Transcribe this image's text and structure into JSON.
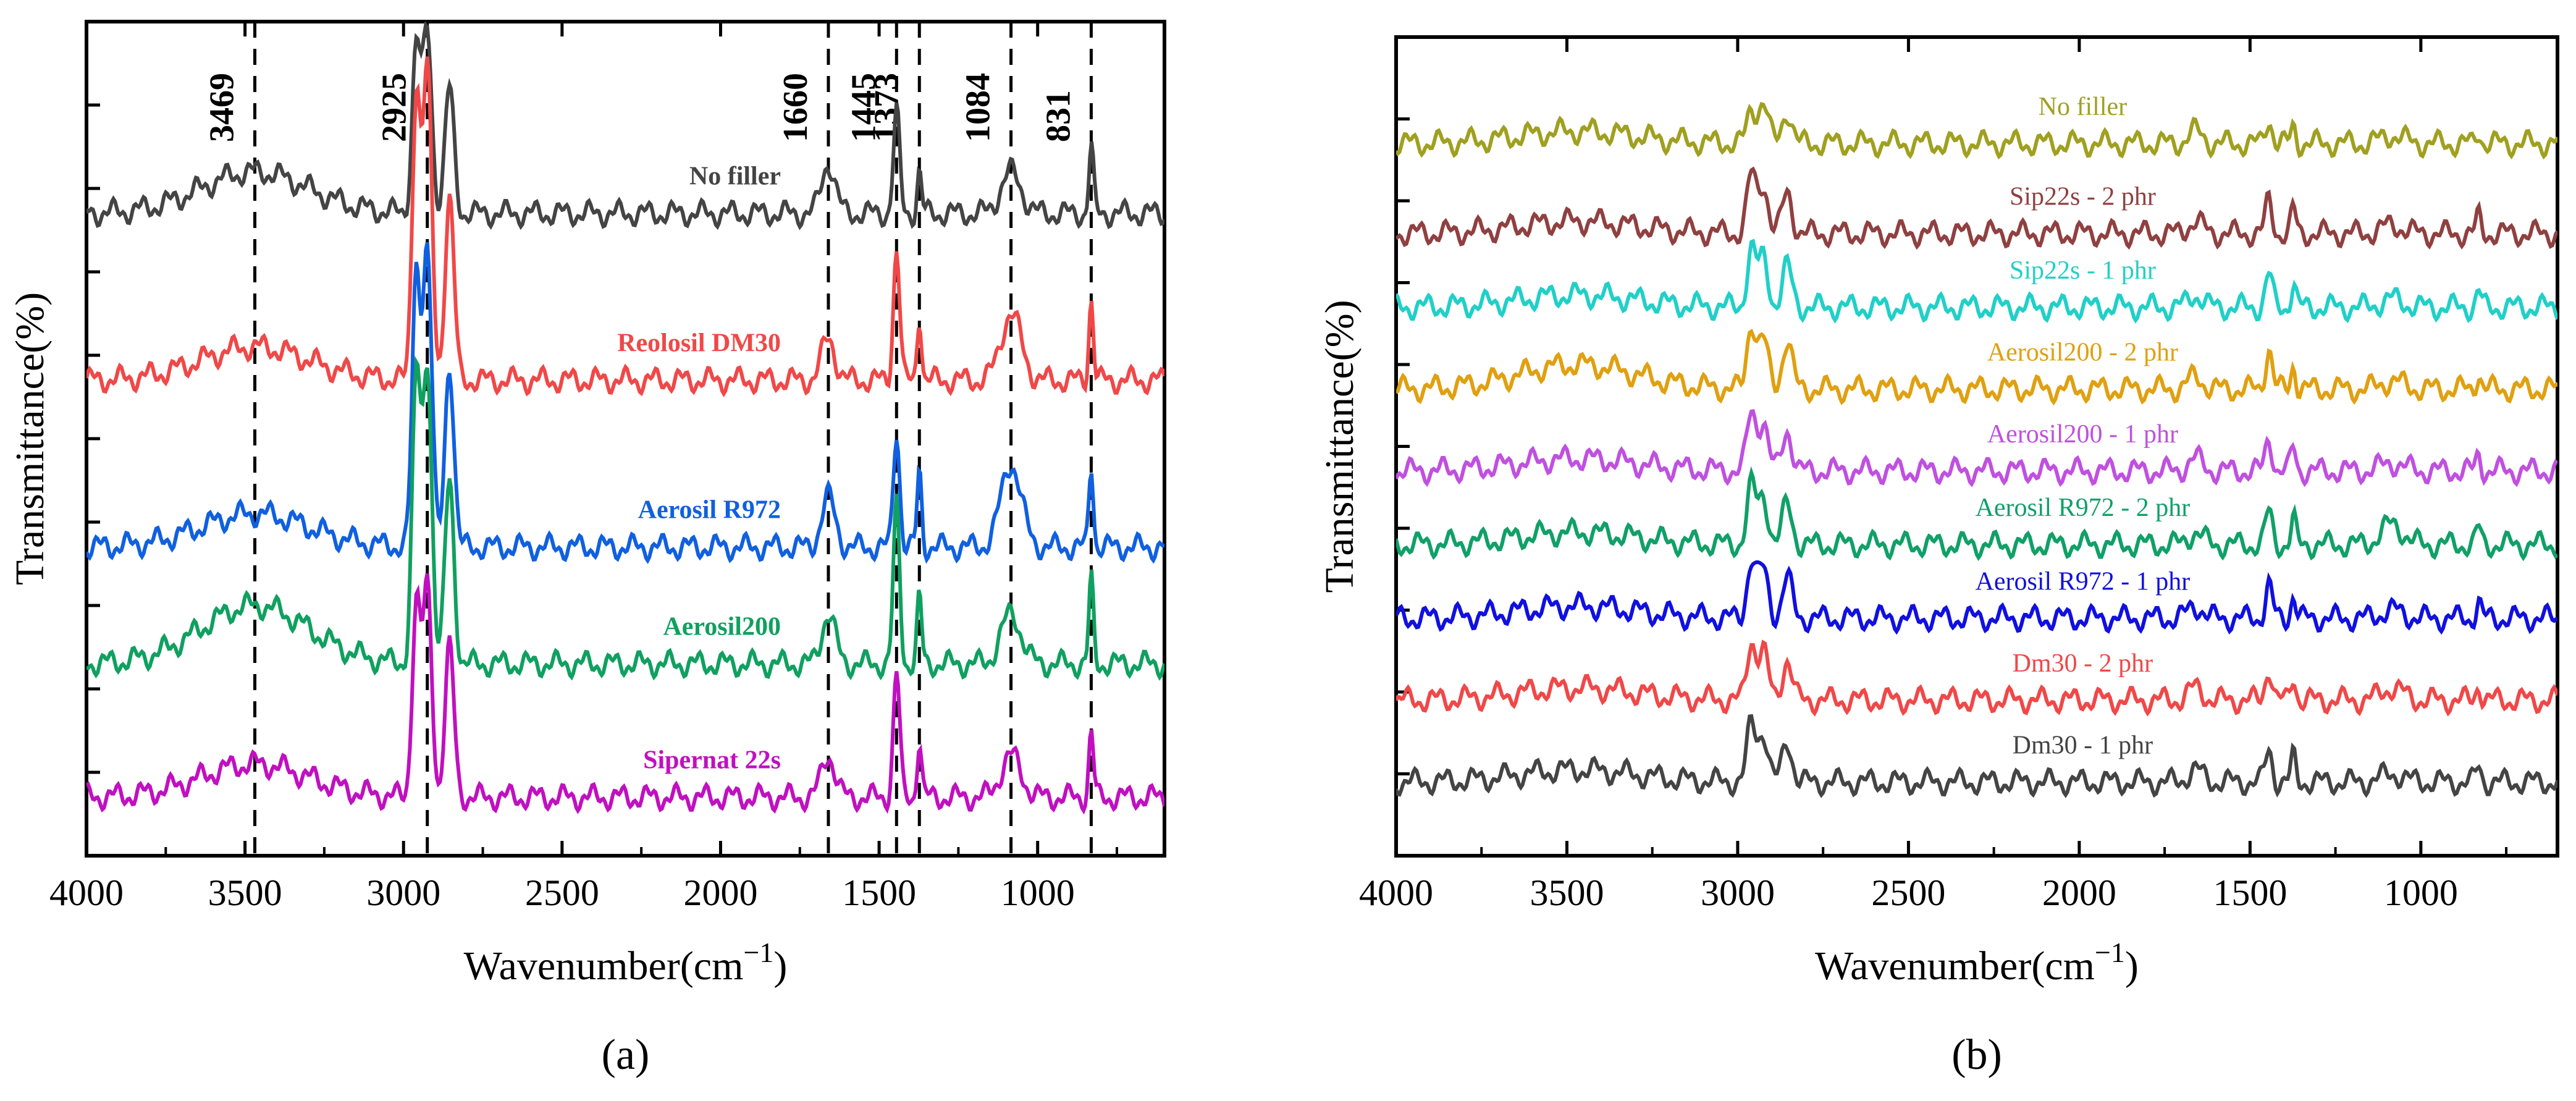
{
  "chart_data": [
    {
      "panel": "(a)",
      "type": "line",
      "xlabel": "Wavenumber(cm",
      "xlabel_sup": "−1",
      "xlabel_end": ")",
      "ylabel": "Transmittance(%)",
      "xlim": [
        4000,
        600
      ],
      "xticks": [
        4000,
        3500,
        3000,
        2500,
        2000,
        1500,
        1000
      ],
      "ylim": [
        0,
        1
      ],
      "y_ticks_labeled": false,
      "annotations": [
        {
          "text": "3469",
          "x": 3469
        },
        {
          "text": "2925",
          "x": 2925
        },
        {
          "text": "1660",
          "x": 1660
        },
        {
          "text": "1445",
          "x": 1445
        },
        {
          "text": "1373",
          "x": 1373
        },
        {
          "text": "1084",
          "x": 1084
        },
        {
          "text": "831",
          "x": 831
        }
      ],
      "series": [
        {
          "name": "No filler",
          "color": "#444444",
          "offset": 0.77,
          "peaks": [
            [
              3469,
              0.05
            ],
            [
              2960,
              0.2
            ],
            [
              2925,
              0.22
            ],
            [
              2855,
              0.15
            ],
            [
              1660,
              0.06
            ],
            [
              1445,
              0.12
            ],
            [
              1373,
              0.05
            ],
            [
              1084,
              0.05
            ],
            [
              831,
              0.08
            ]
          ]
        },
        {
          "name": "Reolosil DM30",
          "color": "#f04848",
          "offset": 0.57,
          "peaks": [
            [
              3469,
              0.04
            ],
            [
              2960,
              0.34
            ],
            [
              2925,
              0.37
            ],
            [
              2855,
              0.22
            ],
            [
              1660,
              0.05
            ],
            [
              1445,
              0.16
            ],
            [
              1373,
              0.08
            ],
            [
              1084,
              0.08
            ],
            [
              831,
              0.1
            ]
          ]
        },
        {
          "name": "Aerosil R972",
          "color": "#1060e0",
          "offset": 0.37,
          "peaks": [
            [
              3469,
              0.04
            ],
            [
              2960,
              0.32
            ],
            [
              2925,
              0.36
            ],
            [
              2855,
              0.22
            ],
            [
              1660,
              0.06
            ],
            [
              1445,
              0.14
            ],
            [
              1373,
              0.09
            ],
            [
              1084,
              0.1
            ],
            [
              831,
              0.1
            ]
          ]
        },
        {
          "name": "Aerosil200",
          "color": "#10a060",
          "offset": 0.23,
          "peaks": [
            [
              3469,
              0.07
            ],
            [
              2960,
              0.34
            ],
            [
              2925,
              0.36
            ],
            [
              2855,
              0.22
            ],
            [
              1660,
              0.06
            ],
            [
              1445,
              0.19
            ],
            [
              1373,
              0.08
            ],
            [
              1084,
              0.06
            ],
            [
              831,
              0.1
            ]
          ]
        },
        {
          "name": "Sipernat 22s",
          "color": "#c010c0",
          "offset": 0.07,
          "peaks": [
            [
              3469,
              0.04
            ],
            [
              2960,
              0.23
            ],
            [
              2925,
              0.25
            ],
            [
              2855,
              0.18
            ],
            [
              1660,
              0.05
            ],
            [
              1445,
              0.15
            ],
            [
              1373,
              0.07
            ],
            [
              1084,
              0.05
            ],
            [
              831,
              0.08
            ]
          ]
        }
      ]
    },
    {
      "panel": "(b)",
      "type": "line",
      "xlabel": "Wavenumber(cm",
      "xlabel_sup": "−1",
      "xlabel_end": ")",
      "ylabel": "Transmittance(%)",
      "xlim": [
        4000,
        600
      ],
      "xticks": [
        4000,
        3500,
        3000,
        2500,
        2000,
        1500,
        1000
      ],
      "ylim": [
        0,
        1
      ],
      "y_ticks_labeled": false,
      "series": [
        {
          "name": "No filler",
          "color": "#a0a020",
          "offset": 0.87,
          "peaks": [
            [
              3469,
              0.015
            ],
            [
              2960,
              0.04
            ],
            [
              2925,
              0.05
            ],
            [
              2855,
              0.04
            ],
            [
              1660,
              0.015
            ],
            [
              1445,
              0.03
            ],
            [
              1373,
              0.02
            ],
            [
              1084,
              0.01
            ],
            [
              831,
              0.015
            ]
          ]
        },
        {
          "name": "Sip22s - 2 phr",
          "color": "#904040",
          "offset": 0.76,
          "peaks": [
            [
              3469,
              0.015
            ],
            [
              2960,
              0.07
            ],
            [
              2925,
              0.06
            ],
            [
              2855,
              0.05
            ],
            [
              1660,
              0.015
            ],
            [
              1445,
              0.04
            ],
            [
              1373,
              0.03
            ],
            [
              1084,
              0.01
            ],
            [
              831,
              0.02
            ]
          ]
        },
        {
          "name": "Sip22s - 1 phr",
          "color": "#20d0c8",
          "offset": 0.67,
          "peaks": [
            [
              3469,
              0.015
            ],
            [
              2960,
              0.07
            ],
            [
              2925,
              0.06
            ],
            [
              2855,
              0.05
            ],
            [
              1660,
              0.015
            ],
            [
              1445,
              0.04
            ],
            [
              1373,
              0.03
            ],
            [
              1084,
              0.01
            ],
            [
              831,
              0.02
            ]
          ]
        },
        {
          "name": "Aerosil200 - 2 phr",
          "color": "#e0a010",
          "offset": 0.57,
          "peaks": [
            [
              3469,
              0.03
            ],
            [
              2960,
              0.08
            ],
            [
              2925,
              0.06
            ],
            [
              2855,
              0.06
            ],
            [
              1660,
              0.015
            ],
            [
              1445,
              0.05
            ],
            [
              1373,
              0.03
            ],
            [
              1084,
              0.01
            ],
            [
              831,
              0.02
            ]
          ]
        },
        {
          "name": "Aerosil200 - 1 phr",
          "color": "#c050e0",
          "offset": 0.47,
          "peaks": [
            [
              3469,
              0.015
            ],
            [
              2960,
              0.07
            ],
            [
              2925,
              0.06
            ],
            [
              2855,
              0.05
            ],
            [
              1660,
              0.015
            ],
            [
              1445,
              0.04
            ],
            [
              1373,
              0.03
            ],
            [
              1084,
              0.01
            ],
            [
              831,
              0.02
            ]
          ]
        },
        {
          "name": "Aerosil R972 - 2 phr",
          "color": "#10a068",
          "offset": 0.38,
          "peaks": [
            [
              3469,
              0.015
            ],
            [
              2960,
              0.07
            ],
            [
              2925,
              0.06
            ],
            [
              2855,
              0.05
            ],
            [
              1660,
              0.015
            ],
            [
              1445,
              0.04
            ],
            [
              1373,
              0.03
            ],
            [
              1084,
              0.025
            ],
            [
              831,
              0.02
            ]
          ]
        },
        {
          "name": "Aerosil R972 - 1 phr",
          "color": "#1010e0",
          "offset": 0.29,
          "peaks": [
            [
              3469,
              0.015
            ],
            [
              2960,
              0.07
            ],
            [
              2925,
              0.06
            ],
            [
              2855,
              0.05
            ],
            [
              1660,
              0.015
            ],
            [
              1445,
              0.04
            ],
            [
              1373,
              0.03
            ],
            [
              1084,
              0.01
            ],
            [
              831,
              0.02
            ]
          ]
        },
        {
          "name": "Dm30 - 2 phr",
          "color": "#f04848",
          "offset": 0.19,
          "peaks": [
            [
              3469,
              0.015
            ],
            [
              2960,
              0.07
            ],
            [
              2925,
              0.06
            ],
            [
              2855,
              0.05
            ],
            [
              1660,
              0.015
            ],
            [
              1445,
              0.04
            ],
            [
              1373,
              0.03
            ],
            [
              1084,
              0.015
            ],
            [
              831,
              0.02
            ]
          ]
        },
        {
          "name": "Dm30 - 1 phr",
          "color": "#444444",
          "offset": 0.09,
          "peaks": [
            [
              3469,
              0.015
            ],
            [
              2960,
              0.07
            ],
            [
              2925,
              0.06
            ],
            [
              2855,
              0.05
            ],
            [
              1660,
              0.015
            ],
            [
              1445,
              0.04
            ],
            [
              1373,
              0.03
            ],
            [
              1084,
              0.01
            ],
            [
              831,
              0.02
            ]
          ]
        }
      ]
    }
  ]
}
